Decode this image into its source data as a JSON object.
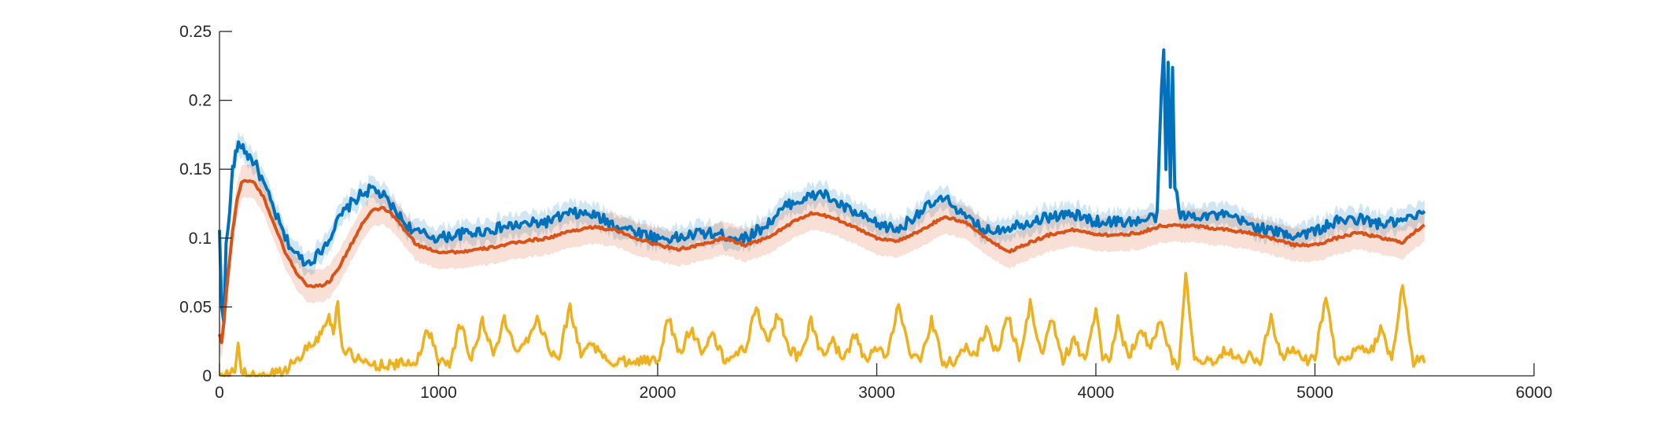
{
  "chart_data": {
    "type": "line",
    "title": "",
    "xlabel": "",
    "ylabel": "",
    "xlim": [
      0,
      6000
    ],
    "ylim": [
      0,
      0.25
    ],
    "x_ticks": [
      0,
      1000,
      2000,
      3000,
      4000,
      5000,
      6000
    ],
    "x_tick_labels": [
      "0",
      "1000",
      "2000",
      "3000",
      "4000",
      "5000",
      "6000"
    ],
    "y_ticks": [
      0,
      0.05,
      0.1,
      0.15,
      0.2,
      0.25
    ],
    "y_tick_labels": [
      "0",
      "0.05",
      "0.1",
      "0.15",
      "0.2",
      "0.25"
    ],
    "grid": false,
    "legend": "none",
    "series": [
      {
        "color": "#0072BD",
        "band_color": "#0072BD",
        "band_halfwidth": 0.008,
        "x": [
          0,
          10,
          20,
          30,
          40,
          60,
          80,
          100,
          130,
          160,
          200,
          250,
          300,
          350,
          400,
          450,
          500,
          550,
          600,
          650,
          700,
          750,
          800,
          850,
          900,
          950,
          1000,
          1100,
          1200,
          1300,
          1400,
          1500,
          1600,
          1700,
          1800,
          1900,
          2000,
          2100,
          2200,
          2300,
          2400,
          2500,
          2600,
          2700,
          2750,
          2800,
          2900,
          3000,
          3100,
          3200,
          3300,
          3350,
          3400,
          3500,
          3600,
          3700,
          3800,
          3900,
          4000,
          4100,
          4200,
          4280,
          4300,
          4310,
          4320,
          4330,
          4340,
          4350,
          4360,
          4370,
          4380,
          4400,
          4500,
          4600,
          4700,
          4800,
          4900,
          5000,
          5100,
          5200,
          5300,
          5400,
          5500
        ],
        "values": [
          0.104,
          0.05,
          0.04,
          0.1,
          0.105,
          0.15,
          0.165,
          0.168,
          0.16,
          0.155,
          0.14,
          0.12,
          0.1,
          0.088,
          0.082,
          0.088,
          0.1,
          0.115,
          0.125,
          0.132,
          0.136,
          0.13,
          0.12,
          0.11,
          0.104,
          0.102,
          0.1,
          0.103,
          0.105,
          0.108,
          0.11,
          0.112,
          0.118,
          0.117,
          0.11,
          0.105,
          0.1,
          0.1,
          0.104,
          0.102,
          0.1,
          0.11,
          0.125,
          0.13,
          0.133,
          0.127,
          0.118,
          0.11,
          0.106,
          0.12,
          0.128,
          0.125,
          0.115,
          0.105,
          0.108,
          0.112,
          0.116,
          0.117,
          0.112,
          0.112,
          0.112,
          0.116,
          0.21,
          0.237,
          0.15,
          0.225,
          0.14,
          0.222,
          0.14,
          0.135,
          0.116,
          0.116,
          0.117,
          0.116,
          0.11,
          0.105,
          0.102,
          0.105,
          0.112,
          0.114,
          0.11,
          0.112,
          0.118
        ]
      },
      {
        "color": "#D95319",
        "band_color": "#D95319",
        "band_halfwidth": 0.012,
        "x": [
          0,
          10,
          20,
          40,
          60,
          80,
          100,
          130,
          160,
          200,
          250,
          300,
          350,
          400,
          450,
          500,
          550,
          600,
          650,
          700,
          750,
          800,
          850,
          900,
          1000,
          1100,
          1200,
          1300,
          1400,
          1500,
          1600,
          1700,
          1800,
          1900,
          2000,
          2100,
          2200,
          2300,
          2400,
          2500,
          2600,
          2700,
          2800,
          2900,
          3000,
          3100,
          3200,
          3300,
          3400,
          3500,
          3600,
          3700,
          3800,
          3900,
          4000,
          4100,
          4200,
          4300,
          4400,
          4500,
          4600,
          4700,
          4800,
          4900,
          5000,
          5100,
          5200,
          5300,
          5400,
          5500
        ],
        "values": [
          0.03,
          0.025,
          0.04,
          0.075,
          0.105,
          0.128,
          0.14,
          0.142,
          0.14,
          0.13,
          0.11,
          0.09,
          0.075,
          0.066,
          0.065,
          0.068,
          0.08,
          0.095,
          0.11,
          0.12,
          0.122,
          0.115,
          0.105,
          0.095,
          0.09,
          0.09,
          0.092,
          0.095,
          0.098,
          0.1,
          0.105,
          0.108,
          0.106,
          0.1,
          0.095,
          0.092,
          0.095,
          0.1,
          0.095,
          0.1,
          0.11,
          0.118,
          0.115,
          0.108,
          0.1,
          0.098,
          0.105,
          0.115,
          0.112,
          0.1,
          0.09,
          0.097,
          0.103,
          0.106,
          0.103,
          0.102,
          0.104,
          0.109,
          0.109,
          0.108,
          0.106,
          0.104,
          0.1,
          0.095,
          0.095,
          0.1,
          0.104,
          0.1,
          0.097,
          0.11
        ]
      },
      {
        "color": "#EDB120",
        "band_color": "#EDB120",
        "band_halfwidth": 0.003,
        "x": [
          0,
          50,
          70,
          85,
          100,
          130,
          200,
          250,
          300,
          350,
          400,
          450,
          480,
          500,
          520,
          540,
          560,
          600,
          650,
          700,
          800,
          900,
          950,
          1000,
          1050,
          1100,
          1150,
          1200,
          1250,
          1300,
          1350,
          1400,
          1450,
          1500,
          1550,
          1600,
          1650,
          1700,
          1750,
          1800,
          1900,
          2000,
          2050,
          2100,
          2150,
          2200,
          2250,
          2300,
          2350,
          2400,
          2450,
          2500,
          2550,
          2600,
          2650,
          2700,
          2750,
          2800,
          2850,
          2900,
          2950,
          3000,
          3050,
          3100,
          3150,
          3200,
          3250,
          3300,
          3350,
          3400,
          3450,
          3500,
          3550,
          3600,
          3650,
          3700,
          3750,
          3800,
          3850,
          3900,
          3950,
          4000,
          4030,
          4060,
          4100,
          4150,
          4200,
          4250,
          4300,
          4350,
          4380,
          4410,
          4450,
          4500,
          4550,
          4600,
          4650,
          4700,
          4750,
          4800,
          4850,
          4900,
          4950,
          5000,
          5050,
          5100,
          5150,
          5200,
          5250,
          5300,
          5350,
          5400,
          5450,
          5500
        ],
        "values": [
          0.0,
          0.0,
          0.005,
          0.024,
          0.003,
          0.0,
          0.0,
          0.002,
          0.004,
          0.012,
          0.02,
          0.028,
          0.035,
          0.045,
          0.03,
          0.055,
          0.02,
          0.015,
          0.01,
          0.008,
          0.008,
          0.01,
          0.035,
          0.012,
          0.01,
          0.038,
          0.012,
          0.04,
          0.015,
          0.04,
          0.02,
          0.025,
          0.043,
          0.02,
          0.015,
          0.05,
          0.015,
          0.025,
          0.012,
          0.01,
          0.012,
          0.01,
          0.042,
          0.015,
          0.035,
          0.018,
          0.03,
          0.012,
          0.015,
          0.02,
          0.05,
          0.025,
          0.045,
          0.02,
          0.012,
          0.04,
          0.015,
          0.025,
          0.01,
          0.03,
          0.01,
          0.02,
          0.015,
          0.055,
          0.015,
          0.01,
          0.04,
          0.01,
          0.01,
          0.02,
          0.015,
          0.035,
          0.015,
          0.045,
          0.012,
          0.052,
          0.015,
          0.04,
          0.012,
          0.025,
          0.012,
          0.045,
          0.015,
          0.01,
          0.04,
          0.012,
          0.035,
          0.02,
          0.042,
          0.01,
          0.008,
          0.076,
          0.015,
          0.01,
          0.012,
          0.02,
          0.012,
          0.015,
          0.01,
          0.042,
          0.012,
          0.02,
          0.01,
          0.015,
          0.055,
          0.01,
          0.012,
          0.02,
          0.015,
          0.035,
          0.012,
          0.065,
          0.01,
          0.012
        ]
      }
    ]
  }
}
